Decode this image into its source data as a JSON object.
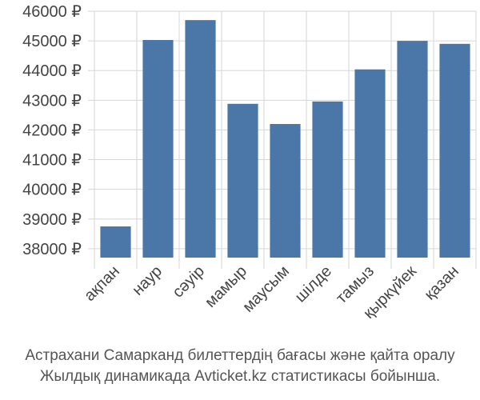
{
  "chart_data": {
    "type": "bar",
    "categories": [
      "ақпан",
      "наур",
      "сәуір",
      "мамыр",
      "маусым",
      "шілде",
      "тамыз",
      "қыркүйек",
      "қазан"
    ],
    "values": [
      38750,
      45030,
      45700,
      42880,
      42200,
      42960,
      44040,
      45000,
      44900
    ],
    "ylim": [
      37700,
      46000
    ],
    "yticks": [
      38000,
      39000,
      40000,
      41000,
      42000,
      43000,
      44000,
      45000,
      46000
    ],
    "ytick_labels": [
      "38000 ₽",
      "39000 ₽",
      "40000 ₽",
      "41000 ₽",
      "42000 ₽",
      "43000 ₽",
      "44000 ₽",
      "45000 ₽",
      "46000 ₽"
    ],
    "grid": true,
    "bar_color": "#4a76a8",
    "grid_color": "#d6d6d6"
  },
  "caption": {
    "line1": "Астрахани Самарканд билеттердің бағасы және қайта оралу",
    "line2": "Жылдық динамикада Avticket.kz статистикасы бойынша."
  }
}
